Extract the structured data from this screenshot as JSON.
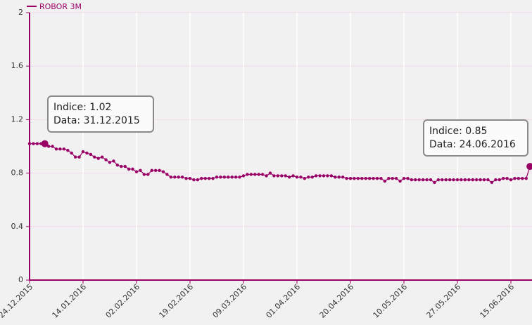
{
  "chart_data": {
    "type": "line",
    "series": [
      {
        "name": "ROBOR 3M",
        "color": "#990066",
        "values": [
          1.02,
          1.02,
          1.02,
          1.02,
          1.02,
          1.0,
          1.0,
          0.98,
          0.98,
          0.98,
          0.97,
          0.95,
          0.92,
          0.92,
          0.96,
          0.95,
          0.94,
          0.92,
          0.91,
          0.92,
          0.9,
          0.88,
          0.89,
          0.86,
          0.85,
          0.85,
          0.83,
          0.83,
          0.81,
          0.82,
          0.79,
          0.79,
          0.82,
          0.82,
          0.82,
          0.81,
          0.79,
          0.77,
          0.77,
          0.77,
          0.77,
          0.76,
          0.76,
          0.75,
          0.75,
          0.76,
          0.76,
          0.76,
          0.76,
          0.77,
          0.77,
          0.77,
          0.77,
          0.77,
          0.77,
          0.77,
          0.78,
          0.79,
          0.79,
          0.79,
          0.79,
          0.79,
          0.78,
          0.8,
          0.78,
          0.78,
          0.78,
          0.78,
          0.77,
          0.78,
          0.77,
          0.77,
          0.76,
          0.77,
          0.77,
          0.78,
          0.78,
          0.78,
          0.78,
          0.78,
          0.77,
          0.77,
          0.77,
          0.76,
          0.76,
          0.76,
          0.76,
          0.76,
          0.76,
          0.76,
          0.76,
          0.76,
          0.76,
          0.74,
          0.76,
          0.76,
          0.76,
          0.74,
          0.76,
          0.76,
          0.75,
          0.75,
          0.75,
          0.75,
          0.75,
          0.75,
          0.73,
          0.75,
          0.75,
          0.75,
          0.75,
          0.75,
          0.75,
          0.75,
          0.75,
          0.75,
          0.75,
          0.75,
          0.75,
          0.75,
          0.75,
          0.73,
          0.75,
          0.75,
          0.76,
          0.76,
          0.75,
          0.76,
          0.76,
          0.76,
          0.76,
          0.85
        ]
      }
    ],
    "categories": [
      "24.12.2015",
      null,
      null,
      null,
      null,
      null,
      null,
      null,
      null,
      null,
      null,
      null,
      null,
      null,
      "14.01.2016",
      null,
      null,
      null,
      null,
      null,
      null,
      null,
      null,
      null,
      null,
      null,
      null,
      null,
      "02.02.2016",
      null,
      null,
      null,
      null,
      null,
      null,
      null,
      null,
      null,
      null,
      null,
      null,
      null,
      "19.02.2016",
      null,
      null,
      null,
      null,
      null,
      null,
      null,
      null,
      null,
      null,
      null,
      null,
      null,
      "09.03.2016",
      null,
      null,
      null,
      null,
      null,
      null,
      null,
      null,
      null,
      null,
      null,
      null,
      null,
      "01.04.2016",
      null,
      null,
      null,
      null,
      null,
      null,
      null,
      null,
      null,
      null,
      null,
      null,
      null,
      "20.04.2016",
      null,
      null,
      null,
      null,
      null,
      null,
      null,
      null,
      null,
      null,
      null,
      null,
      null,
      "10.05.2016",
      null,
      null,
      null,
      null,
      null,
      null,
      null,
      null,
      null,
      null,
      null,
      null,
      null,
      "27.05.2016",
      null,
      null,
      null,
      null,
      null,
      null,
      null,
      null,
      null,
      null,
      null,
      null,
      null,
      "15.06.2016",
      null,
      null,
      null,
      null,
      null
    ],
    "ylim": [
      0,
      2
    ],
    "yticks": [
      0,
      0.4,
      0.8,
      1.2,
      1.6,
      2
    ],
    "grid": true,
    "annotations": [
      [
        "Indice: 1.02",
        "Data: 31.12.2015"
      ],
      [
        "Indice: 0.85",
        "Data: 24.06.2016"
      ]
    ]
  }
}
